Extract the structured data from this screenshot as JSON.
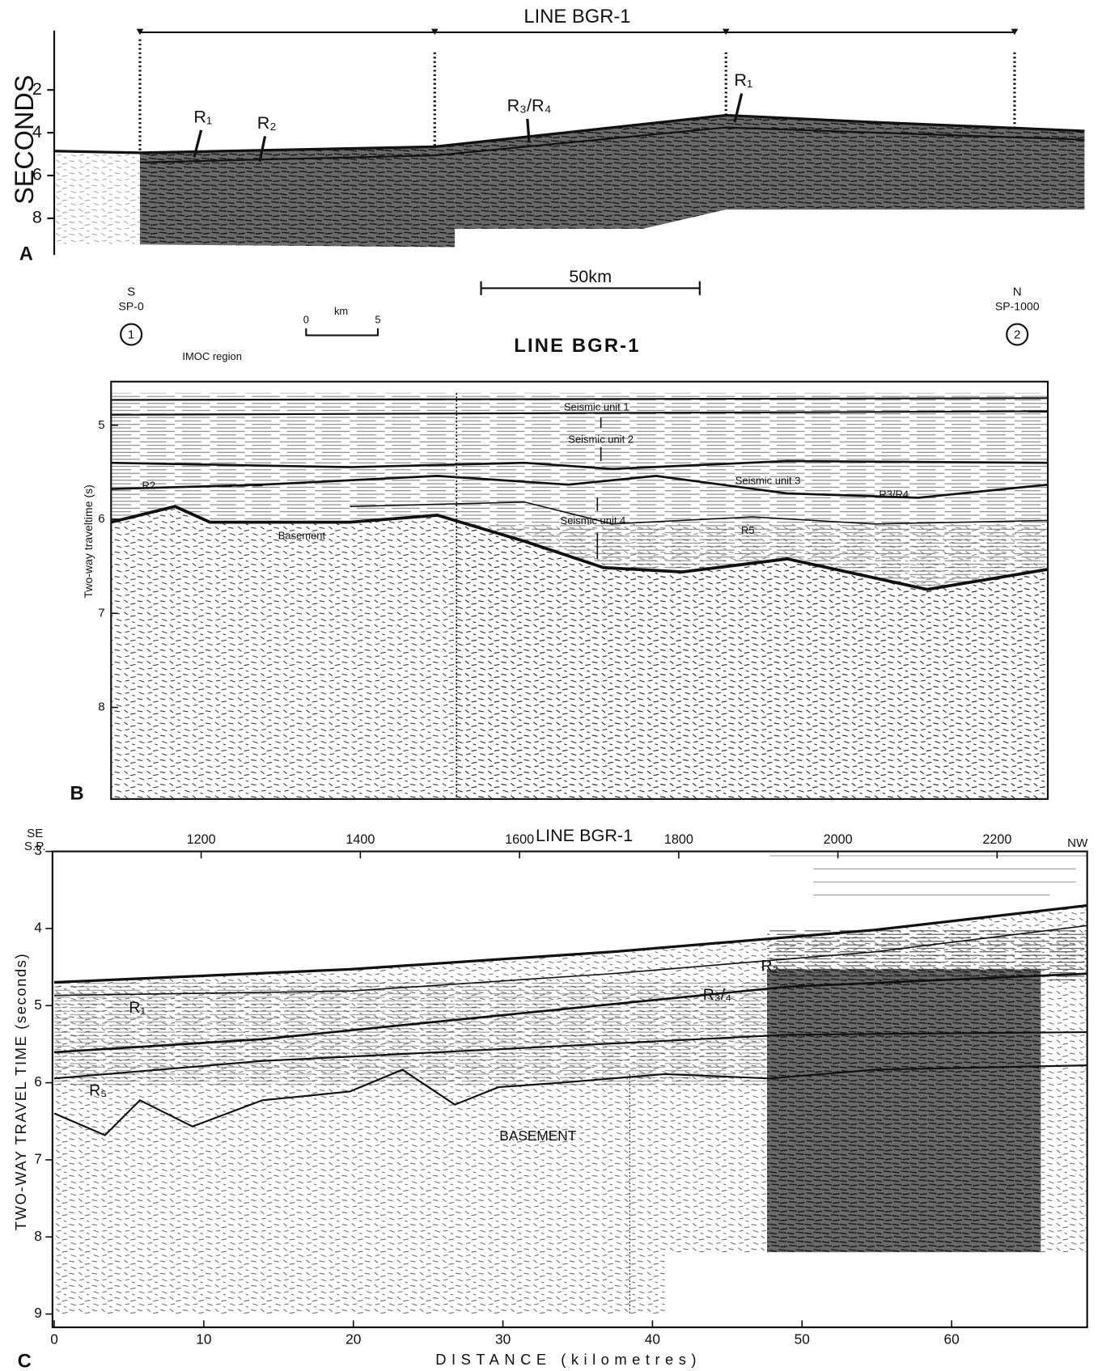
{
  "panel_a": {
    "label": "A",
    "title": "LINE BGR-1",
    "y_axis_label": "SECONDS",
    "y_ticks": [
      2,
      4,
      6,
      8
    ],
    "annotations": [
      "R₁",
      "R₂",
      "R₃/R₄",
      "R₁"
    ],
    "scale_bar": "50km"
  },
  "panel_b": {
    "label": "B",
    "title": "LINE BGR-1",
    "start": {
      "direction": "S",
      "shot_point": "SP-0",
      "marker": 1
    },
    "end": {
      "direction": "N",
      "shot_point": "SP-1000",
      "marker": 2
    },
    "scale": {
      "start": 0,
      "unit": "km",
      "end": 5
    },
    "region": "IMOC region",
    "y_axis_label": "Two-way traveltime (s)",
    "y_ticks": [
      5,
      6,
      7,
      8
    ],
    "annotations": [
      "Seismic unit 1",
      "Seismic unit 2",
      "Seismic unit 3",
      "Seismic unit 4",
      "R2",
      "R3/R4",
      "R5",
      "Basement"
    ]
  },
  "panel_c": {
    "label": "C",
    "title": "LINE BGR-1",
    "start": "SE",
    "shot_point_label": "S.P.",
    "end": "NW",
    "shot_point_ticks": [
      1200,
      1400,
      1600,
      1800,
      2000,
      2200
    ],
    "y_axis_label": "TWO-WAY TRAVEL TIME (seconds)",
    "y_ticks": [
      3,
      4,
      5,
      6,
      7,
      8,
      9
    ],
    "x_ticks": [
      0,
      10,
      20,
      30,
      40,
      50,
      60
    ],
    "x_axis_label": "DISTANCE (kilometres)",
    "annotations": [
      "R₁",
      "R₂",
      "R₃/₄",
      "R₅",
      "BASEMENT"
    ]
  }
}
